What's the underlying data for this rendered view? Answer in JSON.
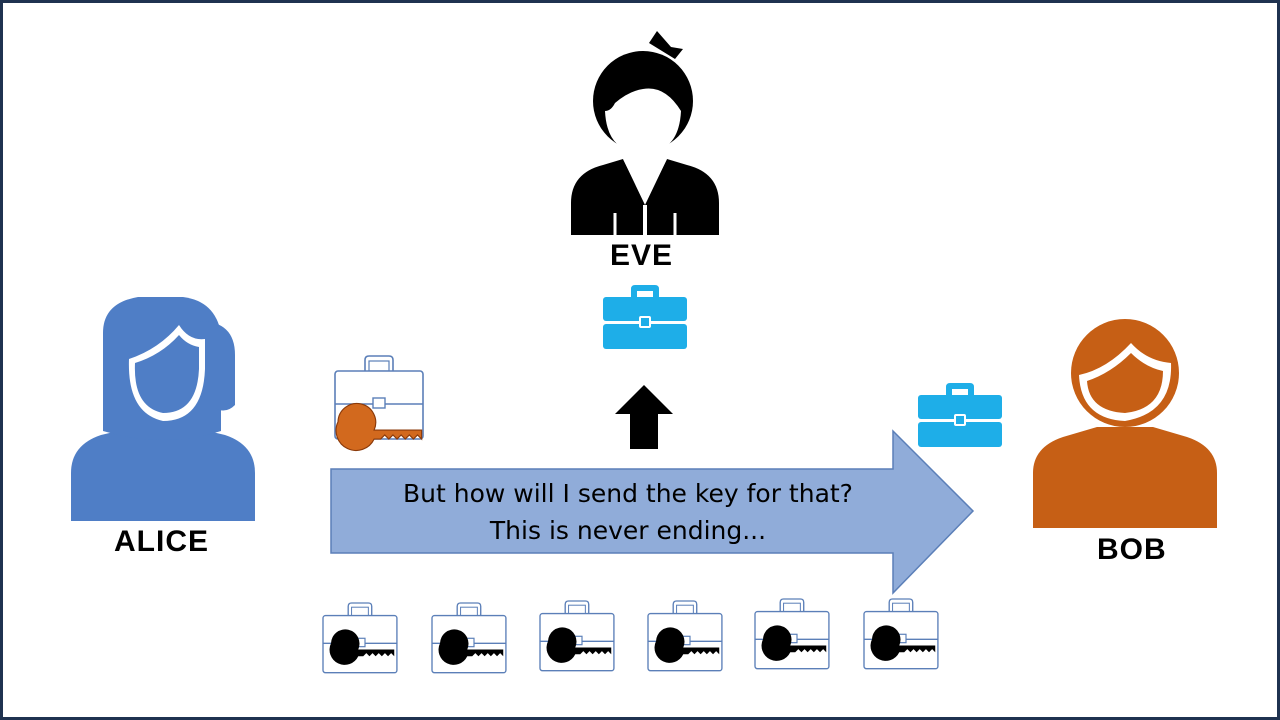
{
  "people": {
    "eve": {
      "name": "EVE"
    },
    "alice": {
      "name": "ALICE"
    },
    "bob": {
      "name": "BOB"
    }
  },
  "message": {
    "line1": "But how will I send the key for that?",
    "line2": "This is never ending..."
  },
  "colors": {
    "alice": "#4f7ec6",
    "bob": "#c65f15",
    "eve": "#000000",
    "arrow_fill": "#90acd9",
    "arrow_stroke": "#5b7fb8",
    "case_blue": "#1eaee8",
    "key_orange": "#d2691e",
    "case_outline": "#5b7fb8",
    "frame": "#1f3250"
  },
  "icons": [
    "person-icon",
    "briefcase-icon",
    "locked-briefcase-key-icon",
    "up-arrow-icon",
    "right-arrow-icon"
  ]
}
